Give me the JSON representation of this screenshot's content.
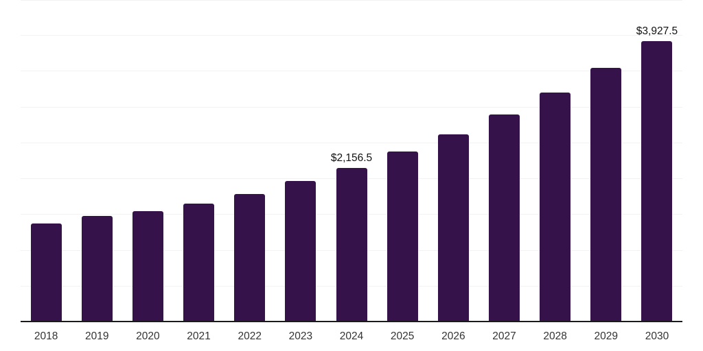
{
  "chart_data": {
    "type": "bar",
    "title": "",
    "xlabel": "",
    "ylabel": "",
    "categories": [
      "2018",
      "2019",
      "2020",
      "2021",
      "2022",
      "2023",
      "2024",
      "2025",
      "2026",
      "2027",
      "2028",
      "2029",
      "2030"
    ],
    "values": [
      1380,
      1485,
      1555,
      1655,
      1790,
      1970,
      2156.5,
      2380,
      2620,
      2900,
      3210,
      3550,
      3927.5
    ],
    "value_labels": {
      "2024": "$2,156.5",
      "2030": "$3,927.5"
    },
    "ylim": [
      0,
      4500
    ],
    "gridline_step": 500,
    "grid": true,
    "legend": false,
    "y_axis_tick_labels_visible": false,
    "bar_color": "#35124A"
  },
  "colors": {
    "background": "#ffffff",
    "bar": "#35124A",
    "axis_line": "#1a1a1a",
    "gridline": "#f2f2f2",
    "x_tick_label": "#333333",
    "value_label": "#111111"
  }
}
